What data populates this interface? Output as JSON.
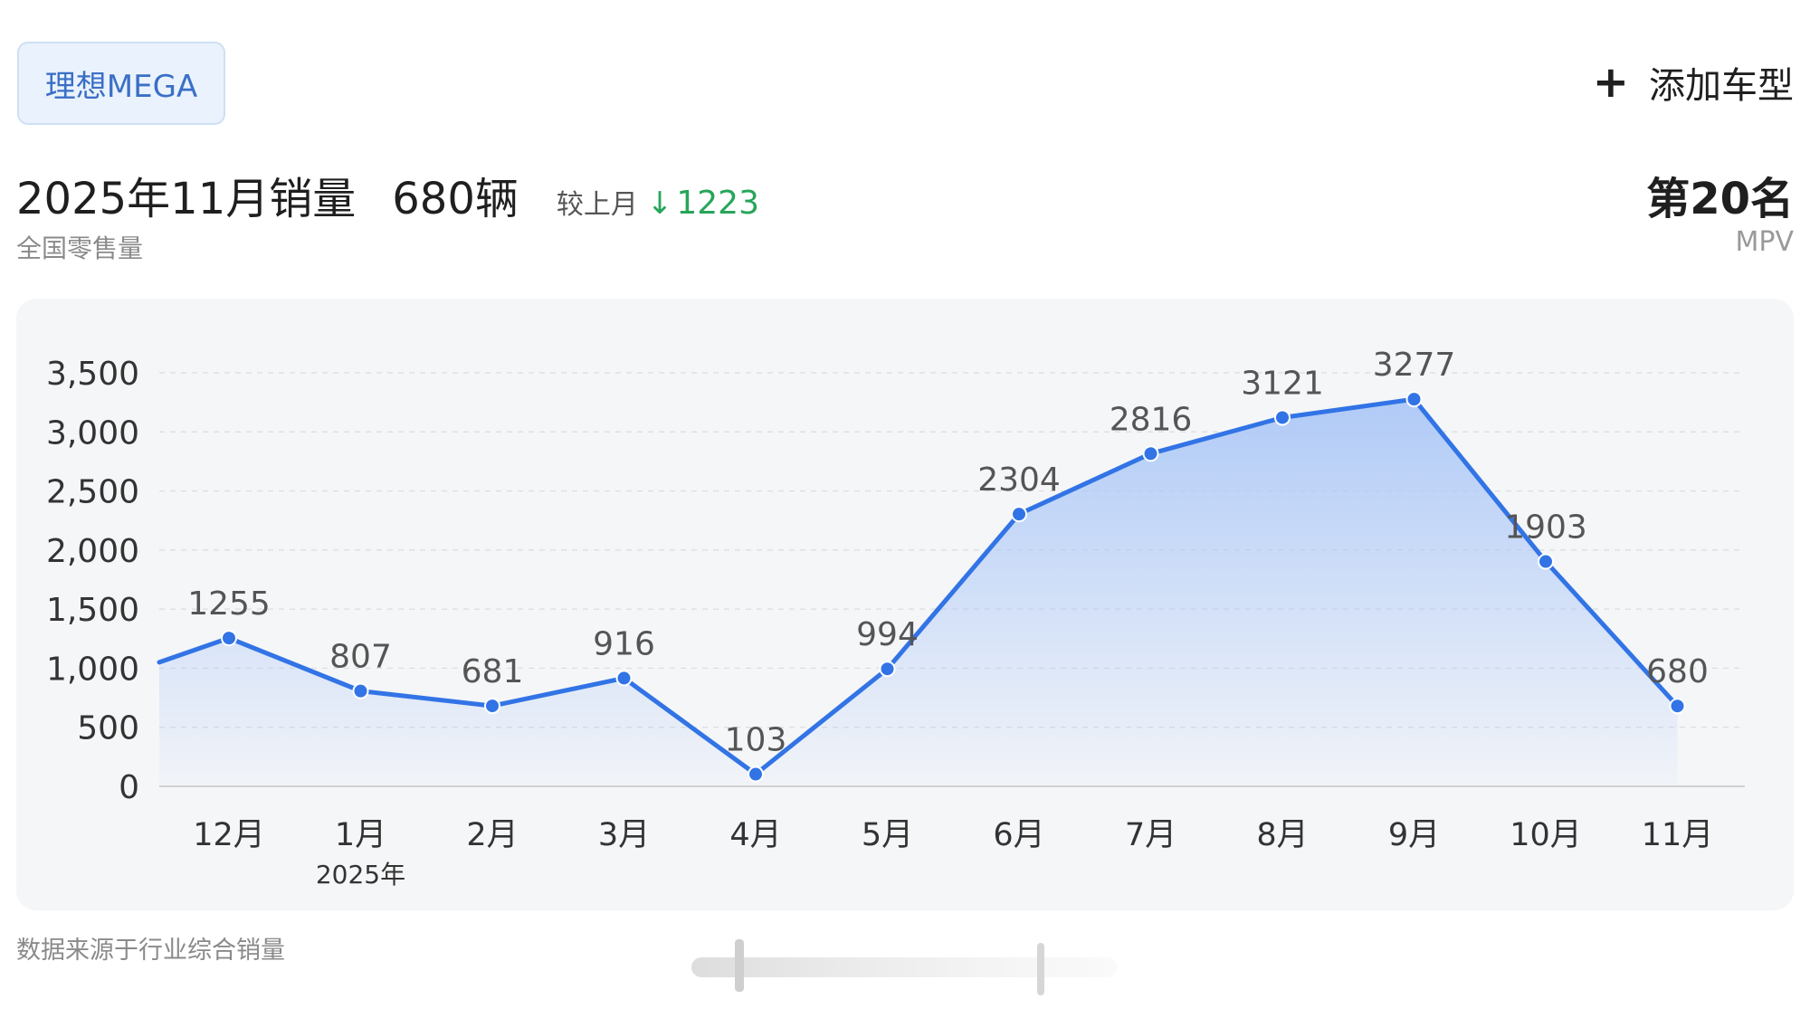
{
  "header": {
    "model_name": "理想MEGA",
    "add_model_label": "添加车型",
    "add_icon": "plus-icon"
  },
  "summary": {
    "period_title": "2025年11月销量",
    "sales_value": "680辆",
    "mom_label": "较上月",
    "mom_direction_icon": "down-arrow-icon",
    "mom_value": "1223",
    "scope_label": "全国零售量",
    "rank": "第20名",
    "segment": "MPV"
  },
  "colors": {
    "line": "#3274e6",
    "area_top": "#a9c6f7",
    "decline": "#27a55a",
    "card_bg": "#f5f6f8"
  },
  "chart_data": {
    "type": "area",
    "categories": [
      "12月",
      "1月",
      "2月",
      "3月",
      "4月",
      "5月",
      "6月",
      "7月",
      "8月",
      "9月",
      "10月",
      "11月"
    ],
    "category_sublabels": [
      "",
      "2025年",
      "",
      "",
      "",
      "",
      "",
      "",
      "",
      "",
      "",
      ""
    ],
    "series": [
      {
        "values": [
          1255,
          807,
          681,
          916,
          103,
          994,
          2304,
          2816,
          3121,
          3277,
          1903,
          680
        ],
        "value_labels": [
          "1255",
          "807",
          "681",
          "916",
          "103",
          "994",
          "2304",
          "2816",
          "3121",
          "3277",
          "1903",
          "680"
        ]
      }
    ],
    "left_edge_value": 1050,
    "y_ticks": [
      0,
      500,
      1000,
      1500,
      2000,
      2500,
      3000,
      3500
    ],
    "y_tick_labels": [
      "0",
      "500",
      "1,000",
      "1,500",
      "2,000",
      "2,500",
      "3,000",
      "3,500"
    ],
    "ylim": [
      0,
      3500
    ],
    "grid": true,
    "title": "",
    "xlabel": "",
    "ylabel": ""
  },
  "footer": {
    "source_note": "数据来源于行业综合销量"
  }
}
